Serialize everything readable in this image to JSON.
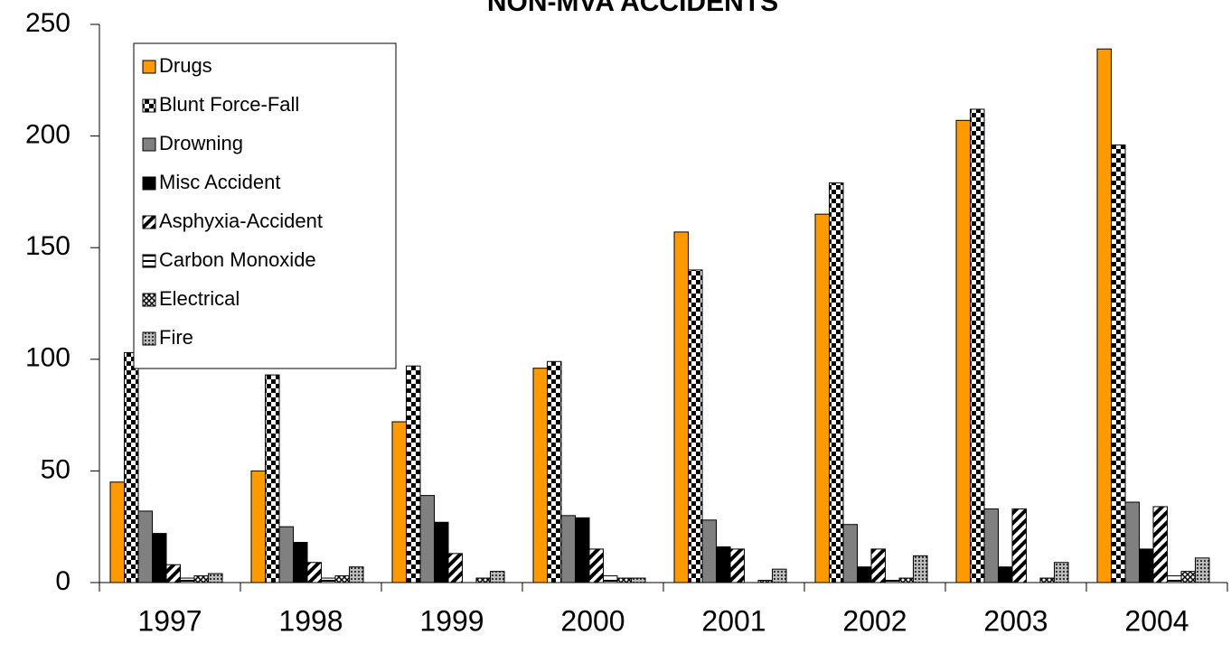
{
  "chart_data": {
    "type": "bar",
    "title": "NON-MVA ACCIDENTS",
    "categories": [
      "1997",
      "1998",
      "1999",
      "2000",
      "2001",
      "2002",
      "2003",
      "2004"
    ],
    "series": [
      {
        "name": "Drugs",
        "color": "#ff9900",
        "pattern": "solid",
        "values": [
          45,
          50,
          72,
          96,
          157,
          165,
          207,
          239
        ]
      },
      {
        "name": "Blunt Force-Fall",
        "color": "#000000",
        "pattern": "checker",
        "values": [
          103,
          93,
          97,
          99,
          140,
          179,
          212,
          196
        ]
      },
      {
        "name": "Drowning",
        "color": "#808080",
        "pattern": "solid",
        "values": [
          32,
          25,
          39,
          30,
          28,
          26,
          33,
          36
        ]
      },
      {
        "name": "Misc Accident",
        "color": "#000000",
        "pattern": "solid",
        "values": [
          22,
          18,
          27,
          29,
          16,
          7,
          7,
          15
        ]
      },
      {
        "name": "Asphyxia-Accident",
        "color": "#000000",
        "pattern": "diagonal",
        "values": [
          8,
          9,
          13,
          15,
          15,
          15,
          33,
          34
        ]
      },
      {
        "name": "Carbon Monoxide",
        "color": "#000000",
        "pattern": "horizontal",
        "values": [
          2,
          2,
          0,
          3,
          0,
          1,
          0,
          3
        ]
      },
      {
        "name": "Electrical",
        "color": "#555555",
        "pattern": "crosshatch",
        "values": [
          3,
          3,
          2,
          2,
          1,
          2,
          2,
          5
        ]
      },
      {
        "name": "Fire",
        "color": "#777777",
        "pattern": "dots",
        "values": [
          4,
          7,
          5,
          2,
          6,
          12,
          9,
          11
        ]
      }
    ],
    "ylim": [
      0,
      250
    ],
    "yticks": [
      0,
      50,
      100,
      150,
      200,
      250
    ],
    "grid": false,
    "legend": "upper left"
  }
}
